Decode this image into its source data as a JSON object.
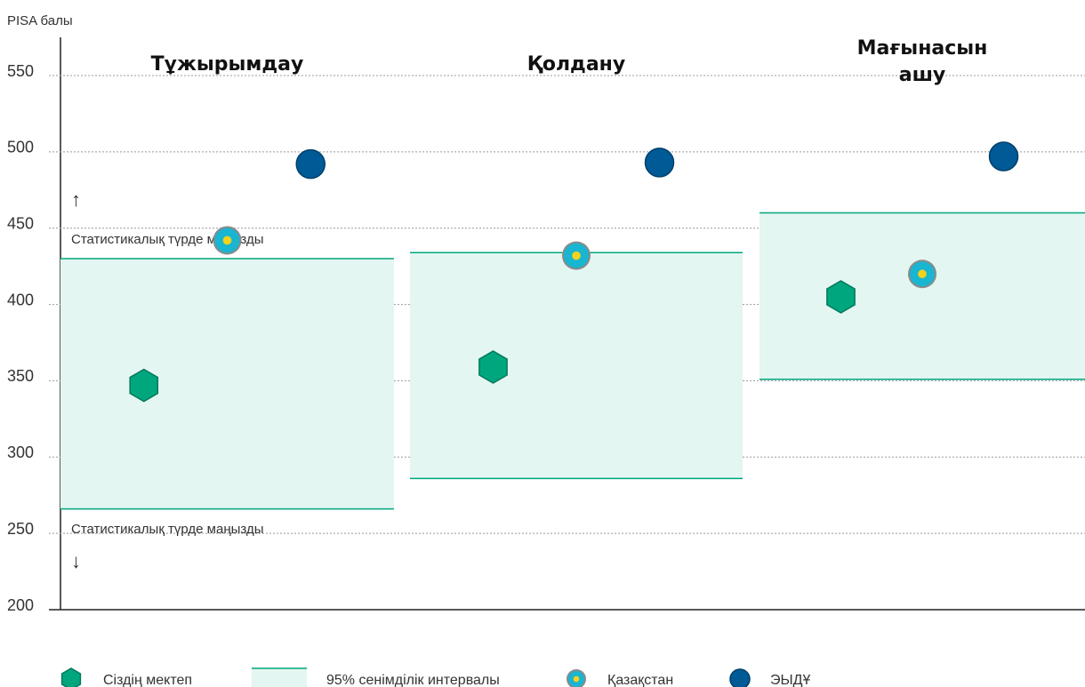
{
  "chart_data": {
    "type": "dot",
    "y_label": "PISA балы",
    "categories": [
      "Тұжырымдау",
      "Қолдану",
      "Мағынасын ашу"
    ],
    "ylim": [
      200,
      550
    ],
    "yticks": [
      200,
      250,
      300,
      350,
      400,
      450,
      500,
      550
    ],
    "grid": true,
    "annotations": [
      "Статистикалық түрде маңызды",
      "Статистикалық түрде маңызды"
    ],
    "series": [
      {
        "name": "Сіздің мектеп",
        "color": "#00a67e",
        "values": [
          347,
          359,
          405
        ]
      },
      {
        "name": "95% сенімділік интервалы",
        "color": "#e3f6f1",
        "values": [
          [
            266,
            430
          ],
          [
            286,
            434
          ],
          [
            351,
            460
          ]
        ]
      },
      {
        "name": "Қазақстан",
        "color": "#19b5d1",
        "values": [
          442,
          432,
          420
        ]
      },
      {
        "name": "ЭЫДҰ",
        "color": "#005a96",
        "values": [
          492,
          493,
          497
        ]
      }
    ]
  }
}
